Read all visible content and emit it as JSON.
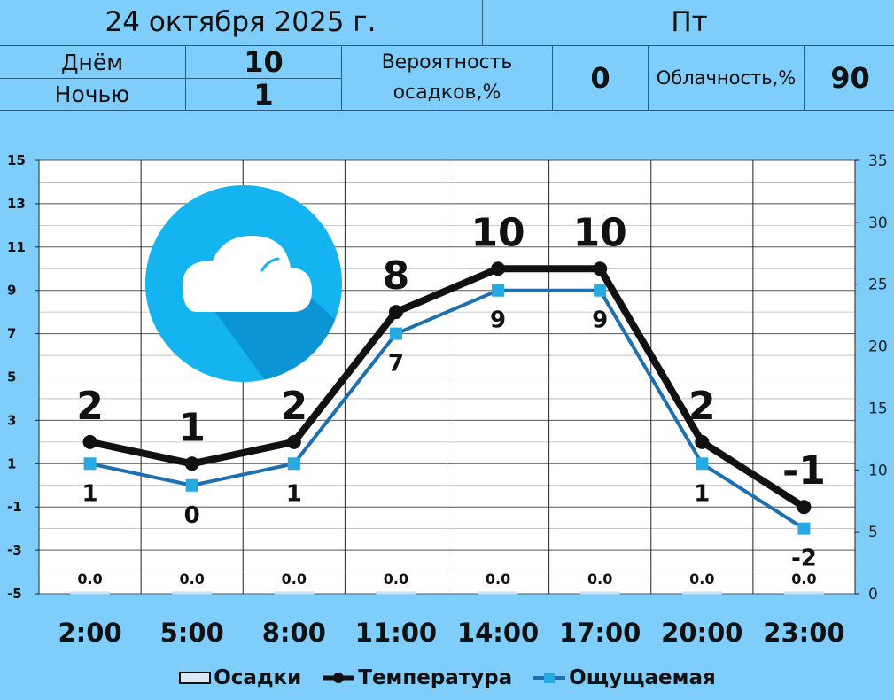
{
  "header": {
    "date": "24 октября 2025 г.",
    "weekday": "Пт",
    "day_label": "Днём",
    "day_value": "10",
    "night_label": "Ночью",
    "night_value": "1",
    "precip_label_line1": "Вероятность",
    "precip_label_line2": "осадков,%",
    "precip_value": "0",
    "cloud_label": "Облачность,%",
    "cloud_value": "90"
  },
  "icon": "cloud-icon",
  "colors": {
    "background": "#7fcdfb",
    "plot_bg": "#ffffff",
    "temperature": "#111111",
    "feels_like": "#1d6fb0",
    "feels_like_marker": "#27a9e1",
    "icon_circle": "#14b4f0"
  },
  "chart_data": {
    "type": "line",
    "x": [
      "2:00",
      "5:00",
      "8:00",
      "11:00",
      "14:00",
      "17:00",
      "20:00",
      "23:00"
    ],
    "ylim": [
      -5,
      15
    ],
    "yticks": [
      "-5",
      "-3",
      "-1",
      "1",
      "3",
      "5",
      "7",
      "9",
      "11",
      "13",
      "15"
    ],
    "y2lim": [
      0,
      35
    ],
    "y2ticks": [
      "0",
      "5",
      "10",
      "15",
      "20",
      "25",
      "30",
      "35"
    ],
    "series": [
      {
        "name": "Температура",
        "values": [
          2,
          1,
          2,
          8,
          10,
          10,
          2,
          -1
        ],
        "labels": [
          "2",
          "1",
          "2",
          "8",
          "10",
          "10",
          "2",
          "-1"
        ]
      },
      {
        "name": "Ощущаемая",
        "values": [
          1,
          0,
          1,
          7,
          9,
          9,
          1,
          -2
        ],
        "labels": [
          "1",
          "0",
          "1",
          "7",
          "9",
          "9",
          "1",
          "-2"
        ]
      },
      {
        "name": "Осадки",
        "axis": "right",
        "values": [
          0.0,
          0.0,
          0.0,
          0.0,
          0.0,
          0.0,
          0.0,
          0.0
        ],
        "labels": [
          "0.0",
          "0.0",
          "0.0",
          "0.0",
          "0.0",
          "0.0",
          "0.0",
          "0.0"
        ]
      }
    ],
    "legend": [
      "Осадки",
      "Температура",
      "Ощущаемая"
    ],
    "legend_position": "bottom",
    "grid": true
  }
}
